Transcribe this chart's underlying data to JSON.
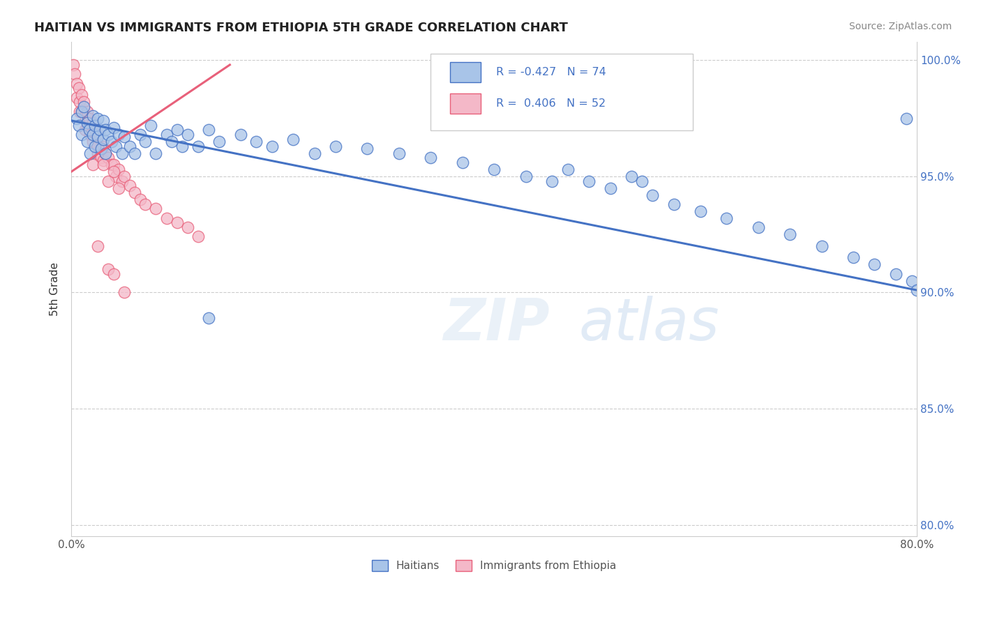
{
  "title": "HAITIAN VS IMMIGRANTS FROM ETHIOPIA 5TH GRADE CORRELATION CHART",
  "source": "Source: ZipAtlas.com",
  "ylabel": "5th Grade",
  "x_min": 0.0,
  "x_max": 0.8,
  "y_min": 0.795,
  "y_max": 1.008,
  "x_ticks": [
    0.0,
    0.1,
    0.2,
    0.3,
    0.4,
    0.5,
    0.6,
    0.7,
    0.8
  ],
  "x_tick_labels": [
    "0.0%",
    "",
    "",
    "",
    "",
    "",
    "",
    "",
    "80.0%"
  ],
  "y_ticks": [
    0.8,
    0.85,
    0.9,
    0.95,
    1.0
  ],
  "y_tick_labels": [
    "80.0%",
    "85.0%",
    "90.0%",
    "95.0%",
    "100.0%"
  ],
  "R_blue": -0.427,
  "N_blue": 74,
  "R_pink": 0.406,
  "N_pink": 52,
  "blue_color": "#4472c4",
  "pink_color": "#e8607a",
  "blue_dot_face": "#a8c4e8",
  "blue_dot_edge": "#4472c4",
  "pink_dot_face": "#f4b8c8",
  "pink_dot_edge": "#e8607a",
  "blue_line_x": [
    0.0,
    0.8
  ],
  "blue_line_y": [
    0.974,
    0.901
  ],
  "pink_line_x": [
    0.0,
    0.15
  ],
  "pink_line_y": [
    0.952,
    0.998
  ],
  "blue_scatter_x": [
    0.005,
    0.007,
    0.01,
    0.01,
    0.012,
    0.015,
    0.015,
    0.017,
    0.018,
    0.02,
    0.02,
    0.022,
    0.022,
    0.025,
    0.025,
    0.027,
    0.028,
    0.03,
    0.03,
    0.032,
    0.032,
    0.035,
    0.038,
    0.04,
    0.042,
    0.045,
    0.048,
    0.05,
    0.055,
    0.06,
    0.065,
    0.07,
    0.075,
    0.08,
    0.09,
    0.095,
    0.1,
    0.105,
    0.11,
    0.12,
    0.13,
    0.14,
    0.16,
    0.175,
    0.19,
    0.21,
    0.23,
    0.25,
    0.28,
    0.31,
    0.34,
    0.37,
    0.4,
    0.43,
    0.455,
    0.47,
    0.49,
    0.51,
    0.53,
    0.55,
    0.57,
    0.595,
    0.62,
    0.65,
    0.68,
    0.71,
    0.74,
    0.76,
    0.78,
    0.13,
    0.54,
    0.79,
    0.795,
    0.8
  ],
  "blue_scatter_y": [
    0.975,
    0.972,
    0.978,
    0.968,
    0.98,
    0.973,
    0.965,
    0.97,
    0.96,
    0.976,
    0.968,
    0.972,
    0.963,
    0.975,
    0.967,
    0.97,
    0.962,
    0.974,
    0.966,
    0.97,
    0.96,
    0.968,
    0.965,
    0.971,
    0.963,
    0.968,
    0.96,
    0.967,
    0.963,
    0.96,
    0.968,
    0.965,
    0.972,
    0.96,
    0.968,
    0.965,
    0.97,
    0.963,
    0.968,
    0.963,
    0.97,
    0.965,
    0.968,
    0.965,
    0.963,
    0.966,
    0.96,
    0.963,
    0.962,
    0.96,
    0.958,
    0.956,
    0.953,
    0.95,
    0.948,
    0.953,
    0.948,
    0.945,
    0.95,
    0.942,
    0.938,
    0.935,
    0.932,
    0.928,
    0.925,
    0.92,
    0.915,
    0.912,
    0.908,
    0.889,
    0.948,
    0.975,
    0.905,
    0.901
  ],
  "pink_scatter_x": [
    0.002,
    0.003,
    0.005,
    0.005,
    0.007,
    0.008,
    0.008,
    0.01,
    0.01,
    0.012,
    0.013,
    0.013,
    0.015,
    0.015,
    0.017,
    0.018,
    0.02,
    0.02,
    0.022,
    0.025,
    0.025,
    0.027,
    0.028,
    0.03,
    0.03,
    0.032,
    0.035,
    0.038,
    0.04,
    0.042,
    0.045,
    0.048,
    0.05,
    0.055,
    0.06,
    0.065,
    0.07,
    0.08,
    0.09,
    0.1,
    0.11,
    0.12,
    0.02,
    0.025,
    0.03,
    0.035,
    0.04,
    0.045,
    0.025,
    0.035,
    0.04,
    0.05
  ],
  "pink_scatter_y": [
    0.998,
    0.994,
    0.99,
    0.984,
    0.988,
    0.982,
    0.978,
    0.985,
    0.978,
    0.982,
    0.976,
    0.97,
    0.978,
    0.972,
    0.975,
    0.968,
    0.973,
    0.965,
    0.97,
    0.968,
    0.96,
    0.963,
    0.958,
    0.963,
    0.957,
    0.96,
    0.958,
    0.955,
    0.955,
    0.95,
    0.953,
    0.948,
    0.95,
    0.946,
    0.943,
    0.94,
    0.938,
    0.936,
    0.932,
    0.93,
    0.928,
    0.924,
    0.955,
    0.963,
    0.955,
    0.948,
    0.952,
    0.945,
    0.92,
    0.91,
    0.908,
    0.9
  ]
}
